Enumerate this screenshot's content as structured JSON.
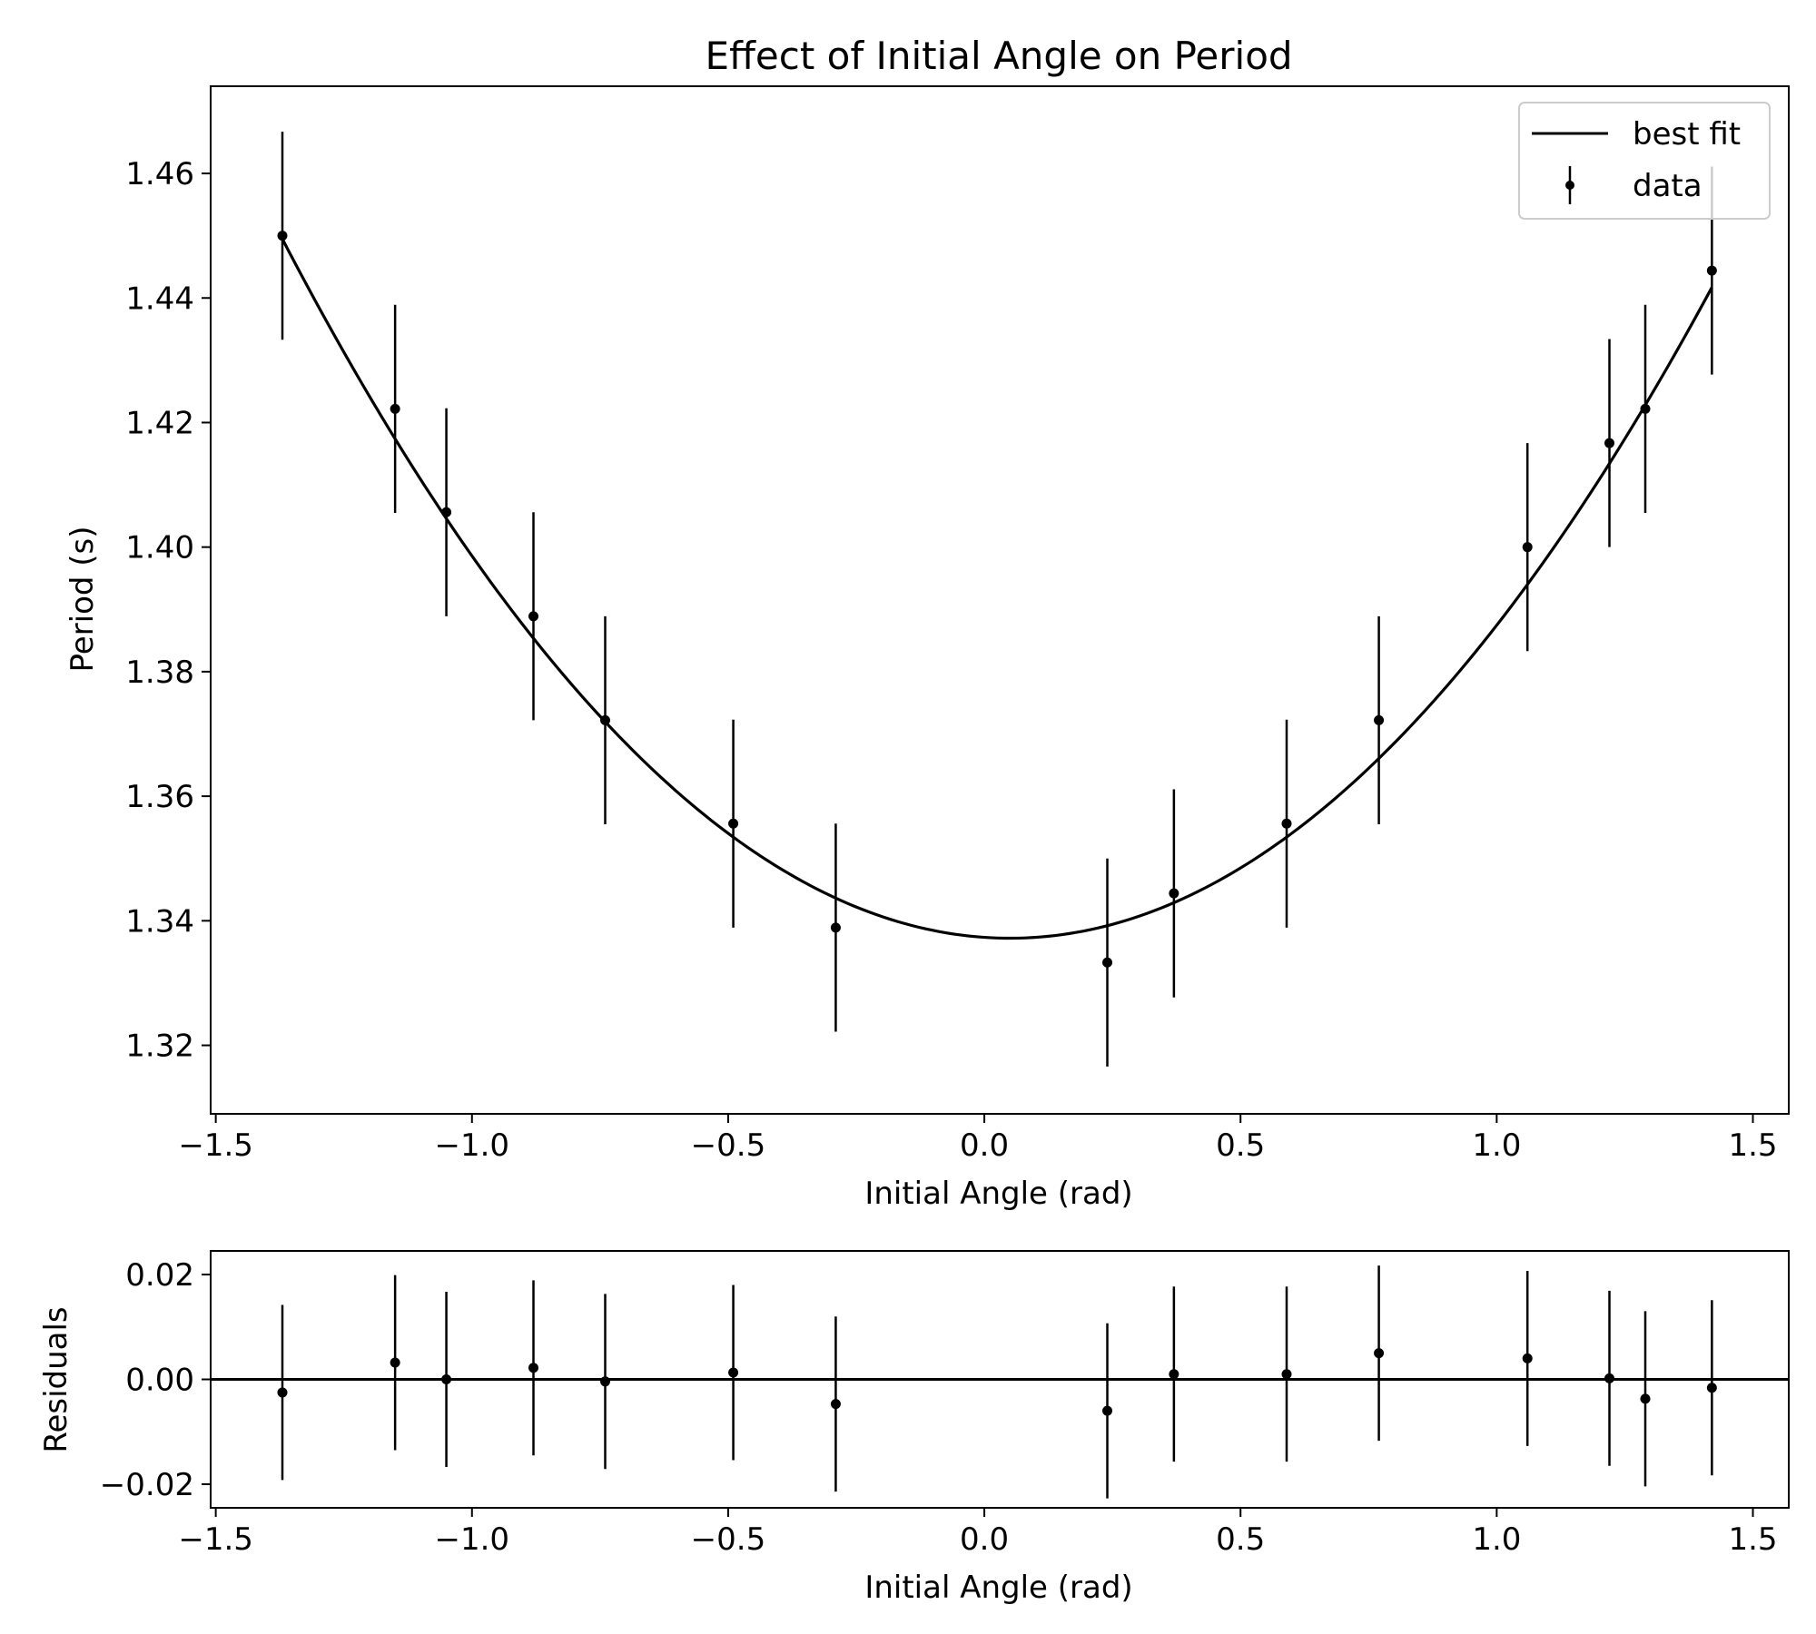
{
  "chart_data": [
    {
      "type": "scatter",
      "title": "Effect of Initial Angle on Period",
      "xlabel": "Initial Angle (rad)",
      "ylabel": "Period (s)",
      "xlim": [
        -1.51,
        1.57
      ],
      "ylim": [
        1.309,
        1.474
      ],
      "xticks": [
        -1.5,
        -1.0,
        -0.5,
        0.0,
        0.5,
        1.0,
        1.5
      ],
      "xtick_labels": [
        "−1.5",
        "−1.0",
        "−0.5",
        "0.0",
        "0.5",
        "1.0",
        "1.5"
      ],
      "yticks": [
        1.32,
        1.34,
        1.36,
        1.38,
        1.4,
        1.42,
        1.44,
        1.46
      ],
      "ytick_labels": [
        "1.32",
        "1.34",
        "1.36",
        "1.38",
        "1.40",
        "1.42",
        "1.44",
        "1.46"
      ],
      "grid": false,
      "legend": {
        "position": "top-right",
        "entries": [
          {
            "label": "best fit",
            "kind": "line"
          },
          {
            "label": "data",
            "kind": "errorbar"
          }
        ]
      },
      "best_fit": {
        "name": "best fit",
        "model": "quadratic",
        "vertex_x": 0.05,
        "vertex_y": 1.3372,
        "curvature": 0.05568,
        "x_range": [
          -1.37,
          1.42
        ]
      },
      "series": [
        {
          "name": "data",
          "x": [
            -1.37,
            -1.15,
            -1.05,
            -0.88,
            -0.74,
            -0.49,
            -0.29,
            0.24,
            0.37,
            0.59,
            0.77,
            1.06,
            1.22,
            1.29,
            1.42
          ],
          "y": [
            1.45,
            1.4222,
            1.4056,
            1.3889,
            1.3722,
            1.3556,
            1.3389,
            1.3333,
            1.3444,
            1.3556,
            1.3722,
            1.4,
            1.4167,
            1.4222,
            1.4444
          ],
          "yerr": [
            0.0167,
            0.0167,
            0.0167,
            0.0167,
            0.0167,
            0.0167,
            0.0167,
            0.0167,
            0.0167,
            0.0167,
            0.0167,
            0.0167,
            0.0167,
            0.0167,
            0.0167
          ]
        }
      ]
    },
    {
      "type": "scatter",
      "title": "",
      "xlabel": "Initial Angle (rad)",
      "ylabel": "Residuals",
      "xlim": [
        -1.51,
        1.57
      ],
      "ylim": [
        -0.0245,
        0.0245
      ],
      "xticks": [
        -1.5,
        -1.0,
        -0.5,
        0.0,
        0.5,
        1.0,
        1.5
      ],
      "xtick_labels": [
        "−1.5",
        "−1.0",
        "−0.5",
        "0.0",
        "0.5",
        "1.0",
        "1.5"
      ],
      "yticks": [
        -0.02,
        0.0,
        0.02
      ],
      "ytick_labels": [
        "−0.02",
        "0.00",
        "0.02"
      ],
      "grid": false,
      "zero_line": 0.0,
      "series": [
        {
          "name": "residuals",
          "x": [
            -1.37,
            -1.15,
            -1.05,
            -0.88,
            -0.74,
            -0.49,
            -0.29,
            0.24,
            0.37,
            0.59,
            0.77,
            1.06,
            1.22,
            1.29,
            1.42
          ],
          "y": [
            -0.0025,
            0.0032,
            0.0,
            0.0022,
            -0.0004,
            0.0013,
            -0.0047,
            -0.006,
            0.001,
            0.001,
            0.005,
            0.004,
            0.0002,
            -0.0037,
            -0.0016
          ],
          "yerr": [
            0.0167,
            0.0167,
            0.0167,
            0.0167,
            0.0167,
            0.0167,
            0.0167,
            0.0167,
            0.0167,
            0.0167,
            0.0167,
            0.0167,
            0.0167,
            0.0167,
            0.0167
          ]
        }
      ]
    }
  ]
}
